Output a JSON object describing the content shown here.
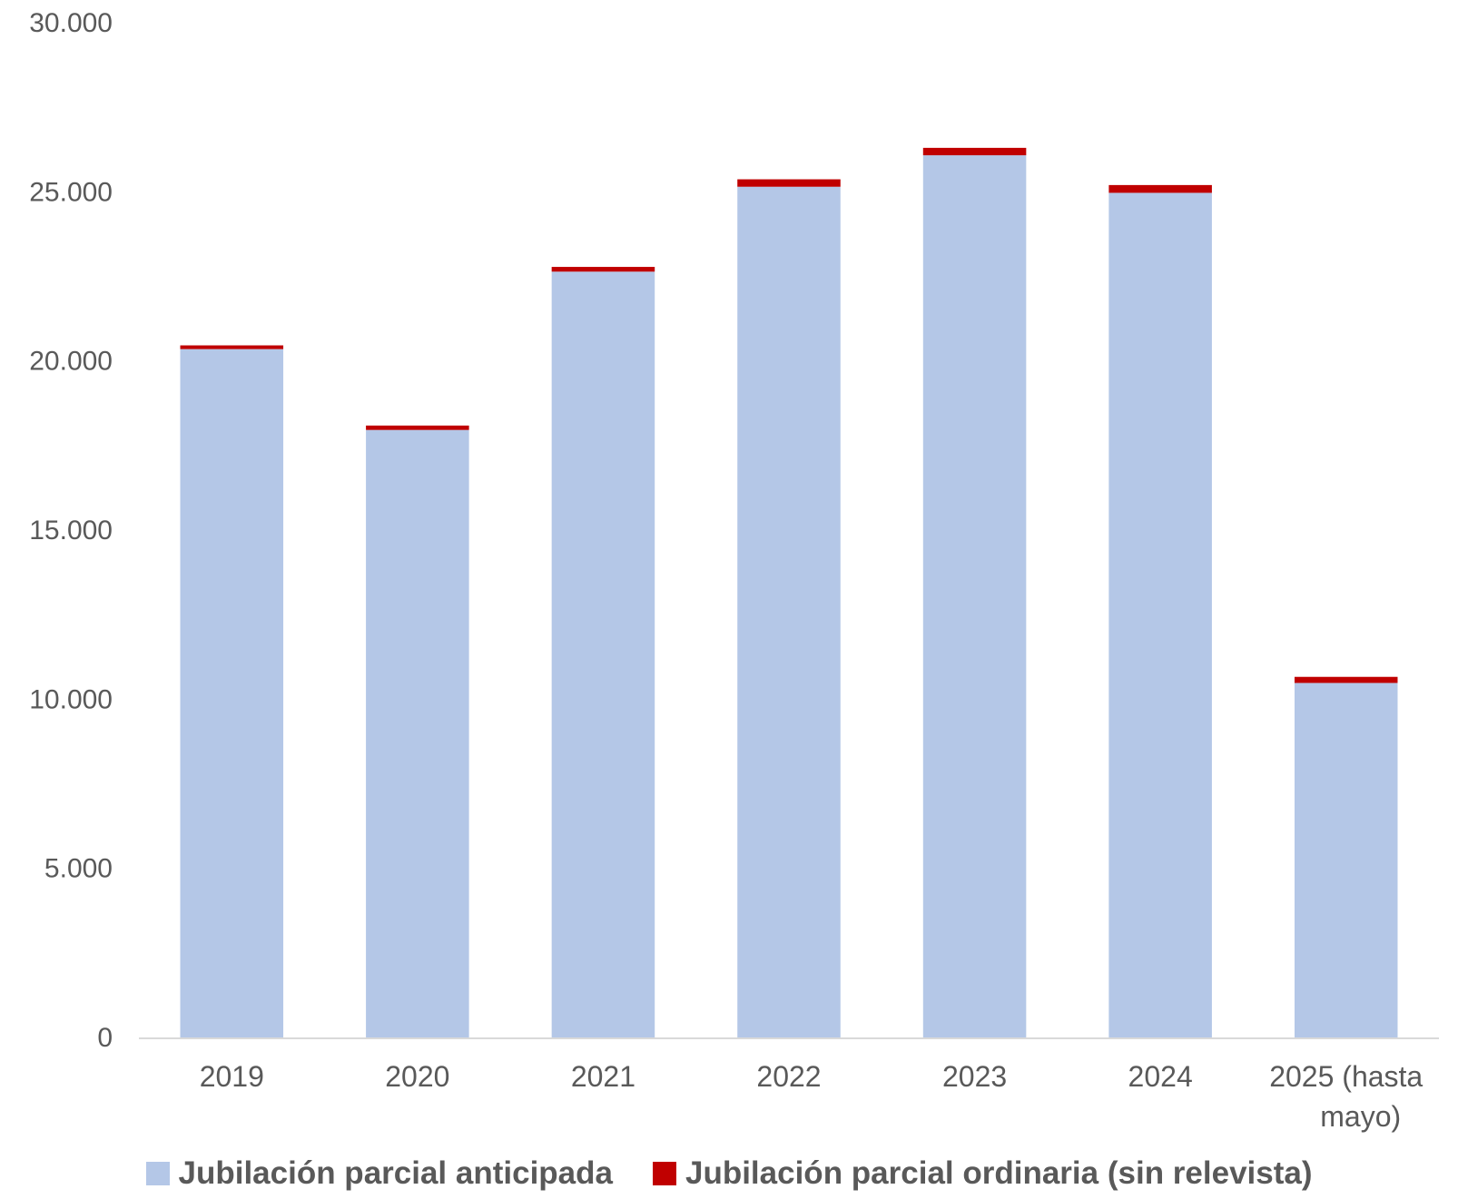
{
  "chart_data": {
    "type": "bar",
    "stacked": true,
    "categories": [
      "2019",
      "2020",
      "2021",
      "2022",
      "2023",
      "2024",
      "2025 (hasta mayo)"
    ],
    "category_lines": [
      [
        "2019"
      ],
      [
        "2020"
      ],
      [
        "2021"
      ],
      [
        "2022"
      ],
      [
        "2023"
      ],
      [
        "2024"
      ],
      [
        "2025 (hasta",
        "mayo)"
      ]
    ],
    "series": [
      {
        "name": "Jubilación parcial anticipada",
        "color": "#b4c7e7",
        "values": [
          20350,
          17960,
          22640,
          25150,
          26080,
          24970,
          10480
        ]
      },
      {
        "name": "Jubilación parcial ordinaria (sin relevista)",
        "color": "#c00000",
        "values": [
          110,
          130,
          140,
          220,
          220,
          230,
          180
        ]
      }
    ],
    "ylim": [
      0,
      30000
    ],
    "yticks": [
      0,
      5000,
      10000,
      15000,
      20000,
      25000,
      30000
    ],
    "ytick_labels": [
      "0",
      "5.000",
      "10.000",
      "15.000",
      "20.000",
      "25.000",
      "30.000"
    ],
    "grid": false,
    "legend_position": "bottom"
  }
}
